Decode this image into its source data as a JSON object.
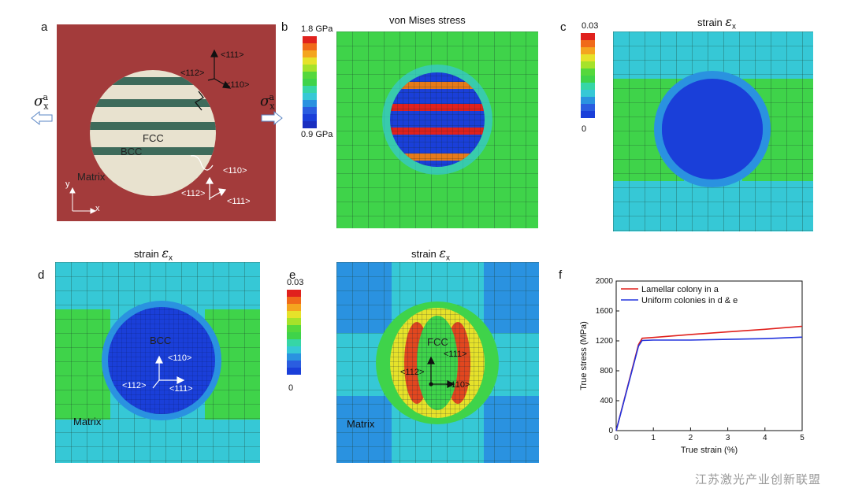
{
  "panels": {
    "a": {
      "label": "a",
      "sigma": "σ",
      "sigma_sub": "x",
      "sigma_sup": "a",
      "fcc": "FCC",
      "bcc": "BCC",
      "matrix": "Matrix",
      "dir_top": [
        "<111>",
        "<112>",
        "<110>"
      ],
      "dir_bottom": [
        "<110>",
        "<112>",
        "<111>"
      ],
      "axis_x": "x",
      "axis_y": "y"
    },
    "b": {
      "label": "b",
      "title": "von Mises stress",
      "scale_max": "1.8 GPa",
      "scale_min": "0.9 GPa"
    },
    "c": {
      "label": "c",
      "title_text": "strain",
      "strain_symbol": "ε",
      "strain_sub": "x",
      "scale_max": "0.03",
      "scale_min": "0"
    },
    "d": {
      "label": "d",
      "title_text": "strain",
      "strain_symbol": "ε",
      "strain_sub": "x",
      "bcc": "BCC",
      "matrix": "Matrix",
      "dirs": [
        "<110>",
        "<112>",
        "<111>"
      ]
    },
    "e": {
      "label": "e",
      "title_text": "strain",
      "strain_symbol": "ε",
      "strain_sub": "x",
      "scale_max": "0.03",
      "scale_min": "0",
      "fcc": "FCC",
      "matrix": "Matrix",
      "dirs": [
        "<111>",
        "<112>",
        "<110>"
      ]
    },
    "f": {
      "label": "f"
    }
  },
  "colors": {
    "matrix_red": "#a33b3b",
    "lamella_green": "#3e6b5b",
    "particle_cream": "#e8e2cf",
    "fe_green": "#3fd34a",
    "fe_blue": "#1a3fd9",
    "fe_cyan": "#36c8d6"
  },
  "chart_data": {
    "type": "line",
    "xlabel": "True strain (%)",
    "ylabel": "True stress (MPa)",
    "xlim": [
      0,
      5
    ],
    "ylim": [
      0,
      2000
    ],
    "xticks": [
      "0",
      "1",
      "2",
      "3",
      "4",
      "5"
    ],
    "yticks": [
      "0",
      "400",
      "800",
      "1200",
      "1600",
      "2000"
    ],
    "legend": "top-left",
    "series": [
      {
        "name": "Lamellar colony in a",
        "color": "#e0211d",
        "x": [
          0,
          0.6,
          0.7,
          1.0,
          2.0,
          3.0,
          4.0,
          5.0
        ],
        "y": [
          0,
          1150,
          1235,
          1245,
          1285,
          1320,
          1355,
          1395
        ]
      },
      {
        "name": "Uniform colonies in d & e",
        "color": "#2233dd",
        "x": [
          0,
          0.6,
          0.7,
          1.0,
          2.0,
          3.0,
          4.0,
          5.0
        ],
        "y": [
          0,
          1130,
          1205,
          1210,
          1210,
          1220,
          1230,
          1250
        ]
      }
    ]
  },
  "watermark": "江苏激光产业创新联盟"
}
